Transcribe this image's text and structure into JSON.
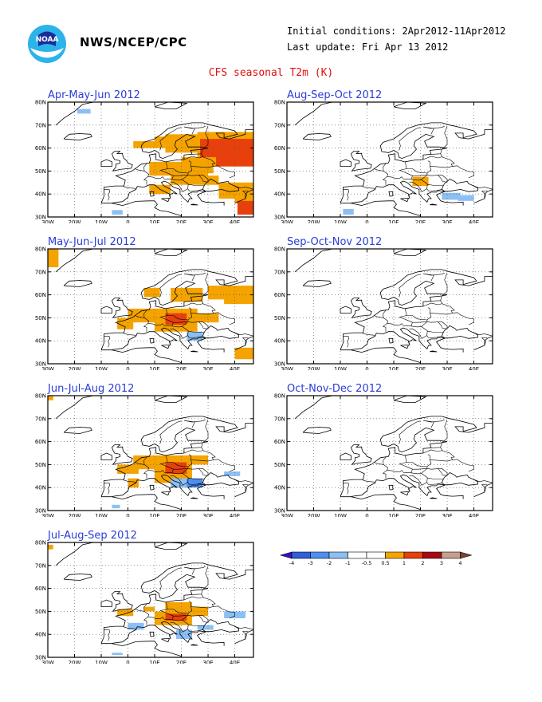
{
  "header": {
    "agency": "NWS/NCEP/CPC",
    "initial_conditions": "Initial conditions: 2Apr2012-11Apr2012",
    "last_update": "Last update: Fri Apr 13 2012",
    "title": "CFS seasonal T2m (K)"
  },
  "axes": {
    "lon_labels": [
      "30W",
      "20W",
      "10W",
      "0",
      "10E",
      "20E",
      "30E",
      "40E"
    ],
    "lat_labels": [
      "80N",
      "70N",
      "60N",
      "50N",
      "40N",
      "30N"
    ]
  },
  "colors": {
    "cold4": "#3a10c8",
    "cold3": "#2f5fd8",
    "cold2": "#4d8ff0",
    "cold1": "#8cc0f4",
    "neutral": "#ffffff",
    "warm1": "#f5a300",
    "warm2": "#e8400c",
    "warm3": "#a80a14",
    "warm4": "#c6a08c",
    "warm5": "#7a4434",
    "title": "#e01010",
    "panel_title": "#2a3cd8"
  },
  "panels": [
    {
      "id": "amj",
      "title": "Apr-May-Jun 2012"
    },
    {
      "id": "aso",
      "title": "Aug-Sep-Oct 2012"
    },
    {
      "id": "mjj",
      "title": "May-Jun-Jul 2012"
    },
    {
      "id": "son",
      "title": "Sep-Oct-Nov 2012"
    },
    {
      "id": "jja",
      "title": "Jun-Jul-Aug 2012"
    },
    {
      "id": "ond",
      "title": "Oct-Nov-Dec 2012"
    },
    {
      "id": "jas",
      "title": "Jul-Aug-Sep 2012"
    }
  ],
  "legend": {
    "labels": [
      "-4",
      "-3",
      "-2",
      "-1",
      "-0.5",
      "0.5",
      "1",
      "2",
      "3",
      "4"
    ]
  }
}
